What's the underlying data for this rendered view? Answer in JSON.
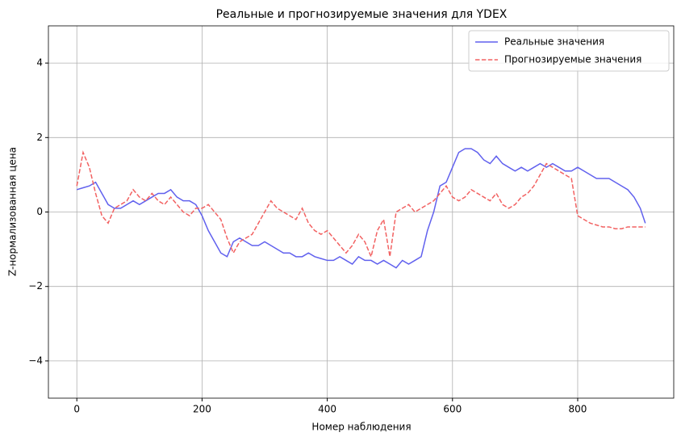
{
  "chart_data": {
    "type": "line",
    "title": "Реальные и прогнозируемые значения для YDEX",
    "x_label": "Номер наблюдения",
    "y_label": "Z-нормализованная цена",
    "x": [
      0,
      10,
      20,
      30,
      40,
      50,
      60,
      70,
      80,
      90,
      100,
      110,
      120,
      130,
      140,
      150,
      160,
      170,
      180,
      190,
      200,
      210,
      220,
      230,
      240,
      250,
      260,
      270,
      280,
      290,
      300,
      310,
      320,
      330,
      340,
      350,
      360,
      370,
      380,
      390,
      400,
      410,
      420,
      430,
      440,
      450,
      460,
      470,
      480,
      490,
      500,
      510,
      520,
      530,
      540,
      550,
      560,
      570,
      580,
      590,
      600,
      610,
      620,
      630,
      640,
      650,
      660,
      670,
      680,
      690,
      700,
      710,
      720,
      730,
      740,
      750,
      760,
      770,
      780,
      790,
      800,
      810,
      820,
      830,
      840,
      850,
      860,
      870,
      880,
      890,
      900,
      908
    ],
    "series": [
      {
        "name": "Реальные значения",
        "color": "#6161ee",
        "linestyle": "solid",
        "values": [
          0.6,
          0.65,
          0.7,
          0.8,
          0.5,
          0.2,
          0.1,
          0.1,
          0.2,
          0.3,
          0.2,
          0.3,
          0.4,
          0.5,
          0.5,
          0.6,
          0.4,
          0.3,
          0.3,
          0.2,
          -0.1,
          -0.5,
          -0.8,
          -1.1,
          -1.2,
          -0.8,
          -0.7,
          -0.8,
          -0.9,
          -0.9,
          -0.8,
          -0.9,
          -1.0,
          -1.1,
          -1.1,
          -1.2,
          -1.2,
          -1.1,
          -1.2,
          -1.25,
          -1.3,
          -1.3,
          -1.2,
          -1.3,
          -1.4,
          -1.2,
          -1.3,
          -1.3,
          -1.4,
          -1.3,
          -1.4,
          -1.5,
          -1.3,
          -1.4,
          -1.3,
          -1.2,
          -0.5,
          0.0,
          0.7,
          0.8,
          1.2,
          1.6,
          1.7,
          1.7,
          1.6,
          1.4,
          1.3,
          1.5,
          1.3,
          1.2,
          1.1,
          1.2,
          1.1,
          1.2,
          1.3,
          1.2,
          1.3,
          1.2,
          1.1,
          1.1,
          1.2,
          1.1,
          1.0,
          0.9,
          0.9,
          0.9,
          0.8,
          0.7,
          0.6,
          0.4,
          0.1,
          -0.3
        ]
      },
      {
        "name": "Прогнозируемые значения",
        "color": "#f26262",
        "linestyle": "dashed",
        "values": [
          0.7,
          1.6,
          1.2,
          0.5,
          -0.1,
          -0.3,
          0.1,
          0.2,
          0.3,
          0.6,
          0.4,
          0.3,
          0.5,
          0.3,
          0.2,
          0.4,
          0.2,
          0.0,
          -0.1,
          0.1,
          0.1,
          0.2,
          0.0,
          -0.2,
          -0.7,
          -1.1,
          -0.8,
          -0.7,
          -0.6,
          -0.3,
          0.0,
          0.3,
          0.1,
          0.0,
          -0.1,
          -0.2,
          0.1,
          -0.3,
          -0.5,
          -0.6,
          -0.5,
          -0.7,
          -0.9,
          -1.1,
          -0.9,
          -0.6,
          -0.8,
          -1.2,
          -0.5,
          -0.2,
          -1.2,
          0.0,
          0.1,
          0.2,
          0.0,
          0.1,
          0.2,
          0.3,
          0.5,
          0.7,
          0.4,
          0.3,
          0.4,
          0.6,
          0.5,
          0.4,
          0.3,
          0.5,
          0.2,
          0.1,
          0.2,
          0.4,
          0.5,
          0.7,
          1.0,
          1.3,
          1.2,
          1.1,
          1.0,
          0.9,
          -0.1,
          -0.2,
          -0.3,
          -0.35,
          -0.4,
          -0.4,
          -0.45,
          -0.45,
          -0.4,
          -0.4,
          -0.4,
          -0.4
        ]
      }
    ],
    "xlim": [
      -45.4,
      953.4
    ],
    "xticks": [
      0,
      200,
      400,
      600,
      800
    ],
    "ylim": [
      -5,
      5
    ],
    "yticks": [
      {
        "value": -4,
        "label": "−4"
      },
      {
        "value": -2,
        "label": "−2"
      },
      0,
      2,
      4
    ],
    "grid": true,
    "legend": "upper right"
  }
}
